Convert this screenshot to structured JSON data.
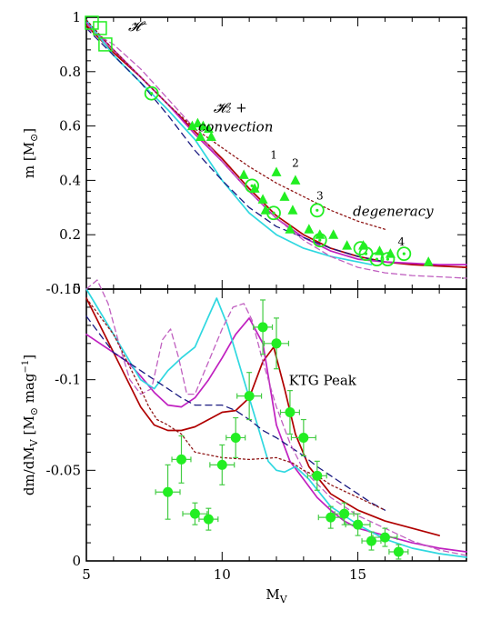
{
  "chart_data": [
    {
      "type": "scatter",
      "panel": "top",
      "xlim": [
        5,
        19
      ],
      "ylim": [
        0,
        1
      ],
      "xticks": [
        5,
        10,
        15
      ],
      "yticks": [
        0,
        0.2,
        0.4,
        0.6,
        0.8,
        1
      ],
      "ytick_labels": [
        "0",
        "0.2",
        "0.4",
        "0.6",
        "0.8",
        "1"
      ],
      "ylabel": {
        "main": "m [M",
        "sub": "⊙",
        "close": "]"
      },
      "annotations": [
        {
          "text": "𝓗⁻",
          "x": 6.9,
          "y": 0.95
        },
        {
          "text": "𝓗₂ +",
          "x": 10.3,
          "y": 0.65
        },
        {
          "text": "convection",
          "x": 10.5,
          "y": 0.58
        },
        {
          "text": "degeneracy",
          "x": 16.3,
          "y": 0.27
        },
        {
          "text": "1",
          "x": 11.9,
          "y": 0.48
        },
        {
          "text": "2",
          "x": 12.7,
          "y": 0.45
        },
        {
          "text": "3",
          "x": 13.6,
          "y": 0.33
        },
        {
          "text": "4",
          "x": 16.6,
          "y": 0.16
        }
      ],
      "series": [
        {
          "style": "red-solid",
          "color": "#b00000",
          "dash": "",
          "x": [
            5,
            6,
            7,
            8,
            9,
            10,
            11,
            12,
            13,
            14,
            15,
            16,
            17,
            18,
            19
          ],
          "y": [
            0.97,
            0.87,
            0.78,
            0.68,
            0.58,
            0.48,
            0.37,
            0.27,
            0.2,
            0.15,
            0.12,
            0.1,
            0.09,
            0.085,
            0.08
          ]
        },
        {
          "style": "magenta-solid",
          "color": "#c020c0",
          "dash": "",
          "x": [
            5,
            6,
            7,
            8,
            9,
            10,
            11,
            12,
            13,
            14,
            15,
            16,
            17,
            18,
            19
          ],
          "y": [
            0.98,
            0.88,
            0.78,
            0.68,
            0.57,
            0.47,
            0.36,
            0.26,
            0.19,
            0.14,
            0.11,
            0.1,
            0.095,
            0.09,
            0.09
          ]
        },
        {
          "style": "cyan-solid",
          "color": "#30d8e0",
          "dash": "",
          "x": [
            5,
            6,
            7,
            8,
            9,
            10,
            11,
            12,
            13,
            14,
            15,
            15.5
          ],
          "y": [
            0.99,
            0.86,
            0.76,
            0.66,
            0.55,
            0.4,
            0.28,
            0.2,
            0.15,
            0.12,
            0.1,
            0.09
          ]
        },
        {
          "style": "blue-dashed",
          "color": "#1a1a80",
          "dash": "7,5",
          "x": [
            5,
            6,
            7,
            8,
            9,
            10,
            11,
            12,
            13,
            14,
            15,
            16
          ],
          "y": [
            0.96,
            0.86,
            0.76,
            0.64,
            0.51,
            0.4,
            0.3,
            0.23,
            0.19,
            0.15,
            0.12,
            0.1
          ]
        },
        {
          "style": "magenta-dashed",
          "color": "#c060c0",
          "dash": "6,4",
          "x": [
            5,
            6,
            7,
            8,
            9,
            10,
            11,
            12,
            13,
            14,
            15,
            16,
            17,
            18,
            19
          ],
          "y": [
            0.96,
            0.9,
            0.81,
            0.7,
            0.59,
            0.47,
            0.36,
            0.26,
            0.18,
            0.12,
            0.08,
            0.06,
            0.05,
            0.045,
            0.04
          ]
        },
        {
          "style": "red-dotted",
          "color": "#901818",
          "dash": "2,3",
          "x": [
            5,
            6,
            7,
            8,
            9,
            10,
            11,
            12,
            13,
            14,
            15,
            16
          ],
          "y": [
            0.99,
            0.88,
            0.78,
            0.68,
            0.59,
            0.52,
            0.45,
            0.39,
            0.34,
            0.29,
            0.25,
            0.22
          ]
        }
      ],
      "open_circles": [
        [
          7.4,
          0.72
        ],
        [
          11.1,
          0.38
        ],
        [
          11.9,
          0.28
        ],
        [
          13.6,
          0.18
        ],
        [
          15.1,
          0.15
        ],
        [
          15.3,
          0.13
        ],
        [
          15.7,
          0.11
        ],
        [
          16.1,
          0.11
        ],
        [
          16.7,
          0.13
        ],
        [
          13.5,
          0.29
        ]
      ],
      "open_squares": [
        [
          5.2,
          0.98
        ],
        [
          5.5,
          0.96
        ],
        [
          5.7,
          0.9
        ]
      ],
      "triangles": [
        [
          8.9,
          0.6
        ],
        [
          9.1,
          0.61
        ],
        [
          9.3,
          0.6
        ],
        [
          9.5,
          0.59
        ],
        [
          9.2,
          0.56
        ],
        [
          9.6,
          0.56
        ],
        [
          10.8,
          0.42
        ],
        [
          11.2,
          0.37
        ],
        [
          11.6,
          0.29
        ],
        [
          12.0,
          0.43
        ],
        [
          12.7,
          0.4
        ],
        [
          12.3,
          0.34
        ],
        [
          11.5,
          0.33
        ],
        [
          12.6,
          0.29
        ],
        [
          12.5,
          0.22
        ],
        [
          13.2,
          0.22
        ],
        [
          14.1,
          0.2
        ],
        [
          14.6,
          0.16
        ],
        [
          15.2,
          0.16
        ],
        [
          15.8,
          0.14
        ],
        [
          16.2,
          0.13
        ],
        [
          17.6,
          0.1
        ],
        [
          13.6,
          0.2
        ]
      ]
    },
    {
      "type": "line",
      "panel": "bottom",
      "xlim": [
        5,
        19
      ],
      "ylim": [
        0,
        0.15
      ],
      "xticks": [
        5,
        10,
        15
      ],
      "yticks": [
        0,
        0.05,
        0.1,
        0.15
      ],
      "ytick_labels": [
        "0",
        "-0.05",
        "-0.1",
        "-0.15"
      ],
      "xlabel": {
        "main": "M",
        "sub": "V"
      },
      "ylabel": {
        "main": "dm/dM",
        "sub": "V",
        "rest": " [M",
        "sub2": "⊙",
        "rest2": " mag",
        "sup": "−1",
        "close": "]"
      },
      "annotations": [
        {
          "text": "KTG Peak",
          "x": 13.7,
          "y": 0.097
        }
      ],
      "series": [
        {
          "style": "red-solid",
          "color": "#b00000",
          "dash": "",
          "x": [
            5,
            6,
            7,
            7.5,
            8,
            8.5,
            9,
            9.5,
            10,
            10.5,
            11,
            11.5,
            11.9,
            12.3,
            12.7,
            13.2,
            14,
            15,
            16,
            17,
            18
          ],
          "y": [
            0.145,
            0.115,
            0.085,
            0.075,
            0.072,
            0.072,
            0.074,
            0.078,
            0.082,
            0.083,
            0.09,
            0.11,
            0.118,
            0.095,
            0.07,
            0.052,
            0.037,
            0.028,
            0.022,
            0.018,
            0.014
          ]
        },
        {
          "style": "magenta-solid",
          "color": "#c020c0",
          "dash": "",
          "x": [
            5,
            5.5,
            6,
            6.5,
            7,
            7.5,
            8,
            8.5,
            9,
            9.5,
            10,
            10.5,
            11,
            11.5,
            12,
            12.5,
            13,
            13.5,
            14,
            14.5,
            15,
            16,
            17,
            18,
            19
          ],
          "y": [
            0.125,
            0.12,
            0.115,
            0.11,
            0.102,
            0.093,
            0.086,
            0.085,
            0.09,
            0.1,
            0.112,
            0.125,
            0.134,
            0.12,
            0.075,
            0.055,
            0.045,
            0.035,
            0.028,
            0.022,
            0.018,
            0.014,
            0.01,
            0.007,
            0.005
          ]
        },
        {
          "style": "cyan-solid",
          "color": "#30d8e0",
          "dash": "",
          "x": [
            5,
            6,
            7,
            7.5,
            8,
            8.5,
            9,
            9.5,
            9.8,
            10.2,
            10.6,
            11,
            11.4,
            11.7,
            12,
            12.3,
            12.7,
            13.2,
            14,
            15,
            16,
            17,
            18,
            19
          ],
          "y": [
            0.15,
            0.125,
            0.1,
            0.095,
            0.105,
            0.112,
            0.118,
            0.135,
            0.145,
            0.13,
            0.11,
            0.09,
            0.07,
            0.055,
            0.05,
            0.049,
            0.052,
            0.045,
            0.03,
            0.02,
            0.012,
            0.007,
            0.004,
            0.002
          ]
        },
        {
          "style": "blue-dashed",
          "color": "#1a1a80",
          "dash": "7,5",
          "x": [
            5,
            5.5,
            6,
            6.5,
            7,
            7.5,
            8,
            8.5,
            9,
            9.5,
            10,
            10.5,
            11,
            11.5,
            12,
            12.5,
            13,
            13.5,
            14,
            14.5,
            15,
            15.5,
            16
          ],
          "y": [
            0.135,
            0.125,
            0.115,
            0.11,
            0.105,
            0.1,
            0.095,
            0.09,
            0.086,
            0.086,
            0.086,
            0.083,
            0.078,
            0.072,
            0.068,
            0.063,
            0.058,
            0.052,
            0.047,
            0.042,
            0.037,
            0.032,
            0.028
          ]
        },
        {
          "style": "magenta-dashed",
          "color": "#c060c0",
          "dash": "6,4",
          "x": [
            5,
            5.4,
            5.8,
            6.2,
            6.6,
            7,
            7.4,
            7.8,
            8.1,
            8.4,
            8.7,
            9,
            9.5,
            10,
            10.4,
            10.8,
            11.1,
            11.5,
            12,
            12.5,
            13,
            14,
            15,
            16,
            17,
            18,
            19
          ],
          "y": [
            0.15,
            0.155,
            0.142,
            0.12,
            0.1,
            0.092,
            0.095,
            0.122,
            0.128,
            0.112,
            0.092,
            0.092,
            0.11,
            0.128,
            0.14,
            0.142,
            0.133,
            0.11,
            0.085,
            0.065,
            0.05,
            0.035,
            0.025,
            0.018,
            0.011,
            0.006,
            0.003
          ]
        },
        {
          "style": "red-dotted",
          "color": "#901818",
          "dash": "2,3",
          "x": [
            5,
            5.5,
            6,
            6.5,
            7,
            7.3,
            7.6,
            8,
            8.5,
            9,
            10,
            11,
            12,
            12.6,
            13,
            13.6,
            14,
            15,
            16
          ],
          "y": [
            0.145,
            0.135,
            0.125,
            0.11,
            0.095,
            0.085,
            0.078,
            0.075,
            0.07,
            0.06,
            0.057,
            0.056,
            0.057,
            0.054,
            0.05,
            0.046,
            0.042,
            0.035,
            0.028
          ]
        }
      ],
      "points": [
        {
          "x": 8.0,
          "y": 0.038,
          "xerr": 0.45,
          "yerr": 0.015
        },
        {
          "x": 8.5,
          "y": 0.056,
          "xerr": 0.35,
          "yerr": 0.013
        },
        {
          "x": 9.0,
          "y": 0.026,
          "xerr": 0.45,
          "yerr": 0.006
        },
        {
          "x": 9.5,
          "y": 0.023,
          "xerr": 0.35,
          "yerr": 0.006
        },
        {
          "x": 10.0,
          "y": 0.053,
          "xerr": 0.45,
          "yerr": 0.011
        },
        {
          "x": 10.5,
          "y": 0.068,
          "xerr": 0.35,
          "yerr": 0.011
        },
        {
          "x": 11.0,
          "y": 0.091,
          "xerr": 0.45,
          "yerr": 0.013
        },
        {
          "x": 11.5,
          "y": 0.129,
          "xerr": 0.35,
          "yerr": 0.015
        },
        {
          "x": 12.0,
          "y": 0.12,
          "xerr": 0.45,
          "yerr": 0.014
        },
        {
          "x": 12.5,
          "y": 0.082,
          "xerr": 0.35,
          "yerr": 0.012
        },
        {
          "x": 13.0,
          "y": 0.068,
          "xerr": 0.45,
          "yerr": 0.01
        },
        {
          "x": 13.5,
          "y": 0.047,
          "xerr": 0.35,
          "yerr": 0.008
        },
        {
          "x": 14.0,
          "y": 0.024,
          "xerr": 0.45,
          "yerr": 0.006
        },
        {
          "x": 14.5,
          "y": 0.026,
          "xerr": 0.35,
          "yerr": 0.006
        },
        {
          "x": 15.0,
          "y": 0.02,
          "xerr": 0.45,
          "yerr": 0.006
        },
        {
          "x": 15.5,
          "y": 0.011,
          "xerr": 0.35,
          "yerr": 0.005
        },
        {
          "x": 16.0,
          "y": 0.013,
          "xerr": 0.45,
          "yerr": 0.005
        },
        {
          "x": 16.5,
          "y": 0.005,
          "xerr": 0.35,
          "yerr": 0.004
        }
      ]
    }
  ],
  "colors": {
    "green_points": "#22ee22",
    "green_errorbars": "#44cc44",
    "axis": "#000000"
  }
}
